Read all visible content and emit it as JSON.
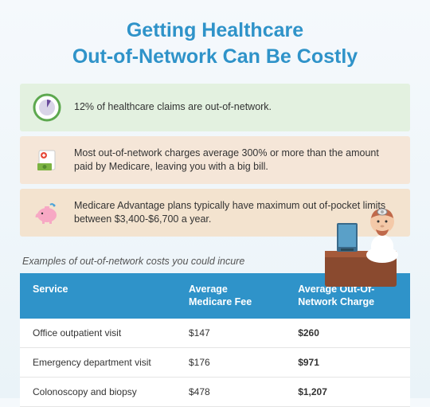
{
  "title_color": "#2f93c9",
  "title_line1": "Getting Healthcare",
  "title_line2": "Out-of-Network Can Be Costly",
  "facts": [
    {
      "bg": "#e3f1e0",
      "text": "12% of healthcare claims are out-of-network."
    },
    {
      "bg": "#f5e6d8",
      "text": "Most out-of-network charges average 300% or more than the amount paid by Medicare, leaving you with a big bill."
    },
    {
      "bg": "#f3e3cf",
      "text": "Medicare Advantage plans typically have maximum out of-pocket limits between $3,400-$6,700 a year."
    }
  ],
  "subtitle": "Examples of out-of-network costs you could incure",
  "table": {
    "header_bg": "#2f93c9",
    "columns": [
      "Service",
      "Average Medicare Fee",
      "Average Out-Of-Network Charge"
    ],
    "rows": [
      [
        "Office outpatient visit",
        "$147",
        "$260"
      ],
      [
        "Emergency department visit",
        "$176",
        "$971"
      ],
      [
        "Colonoscopy and biopsy",
        "$478",
        "$1,207"
      ]
    ]
  }
}
